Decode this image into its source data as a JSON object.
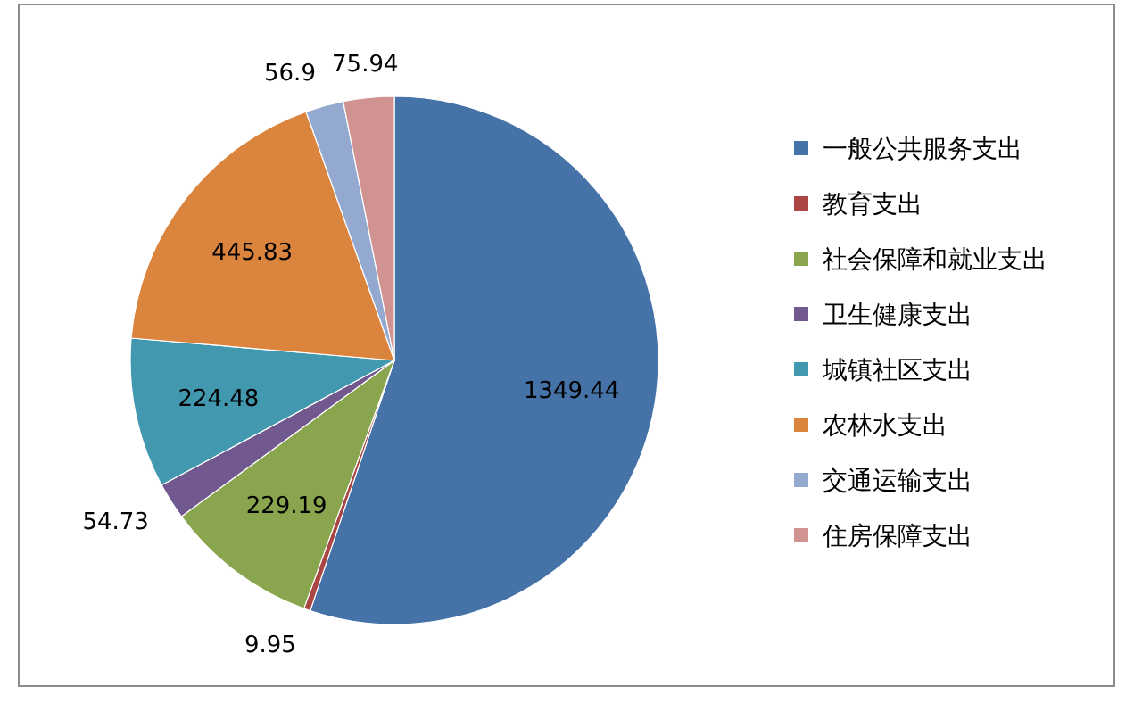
{
  "chart_data": {
    "type": "pie",
    "categories": [
      "一般公共服务支出",
      "教育支出",
      "社会保障和就业支出",
      "卫生健康支出",
      "城镇社区支出",
      "农林水支出",
      "交通运输支出",
      "住房保障支出"
    ],
    "values": [
      1349.44,
      9.95,
      229.19,
      54.73,
      224.48,
      445.83,
      56.9,
      75.94
    ],
    "colors": [
      "#4572a7",
      "#aa4643",
      "#89a54e",
      "#71588f",
      "#4198af",
      "#db843d",
      "#93a9cf",
      "#d19392"
    ],
    "data_labels": true,
    "legend": "right"
  }
}
